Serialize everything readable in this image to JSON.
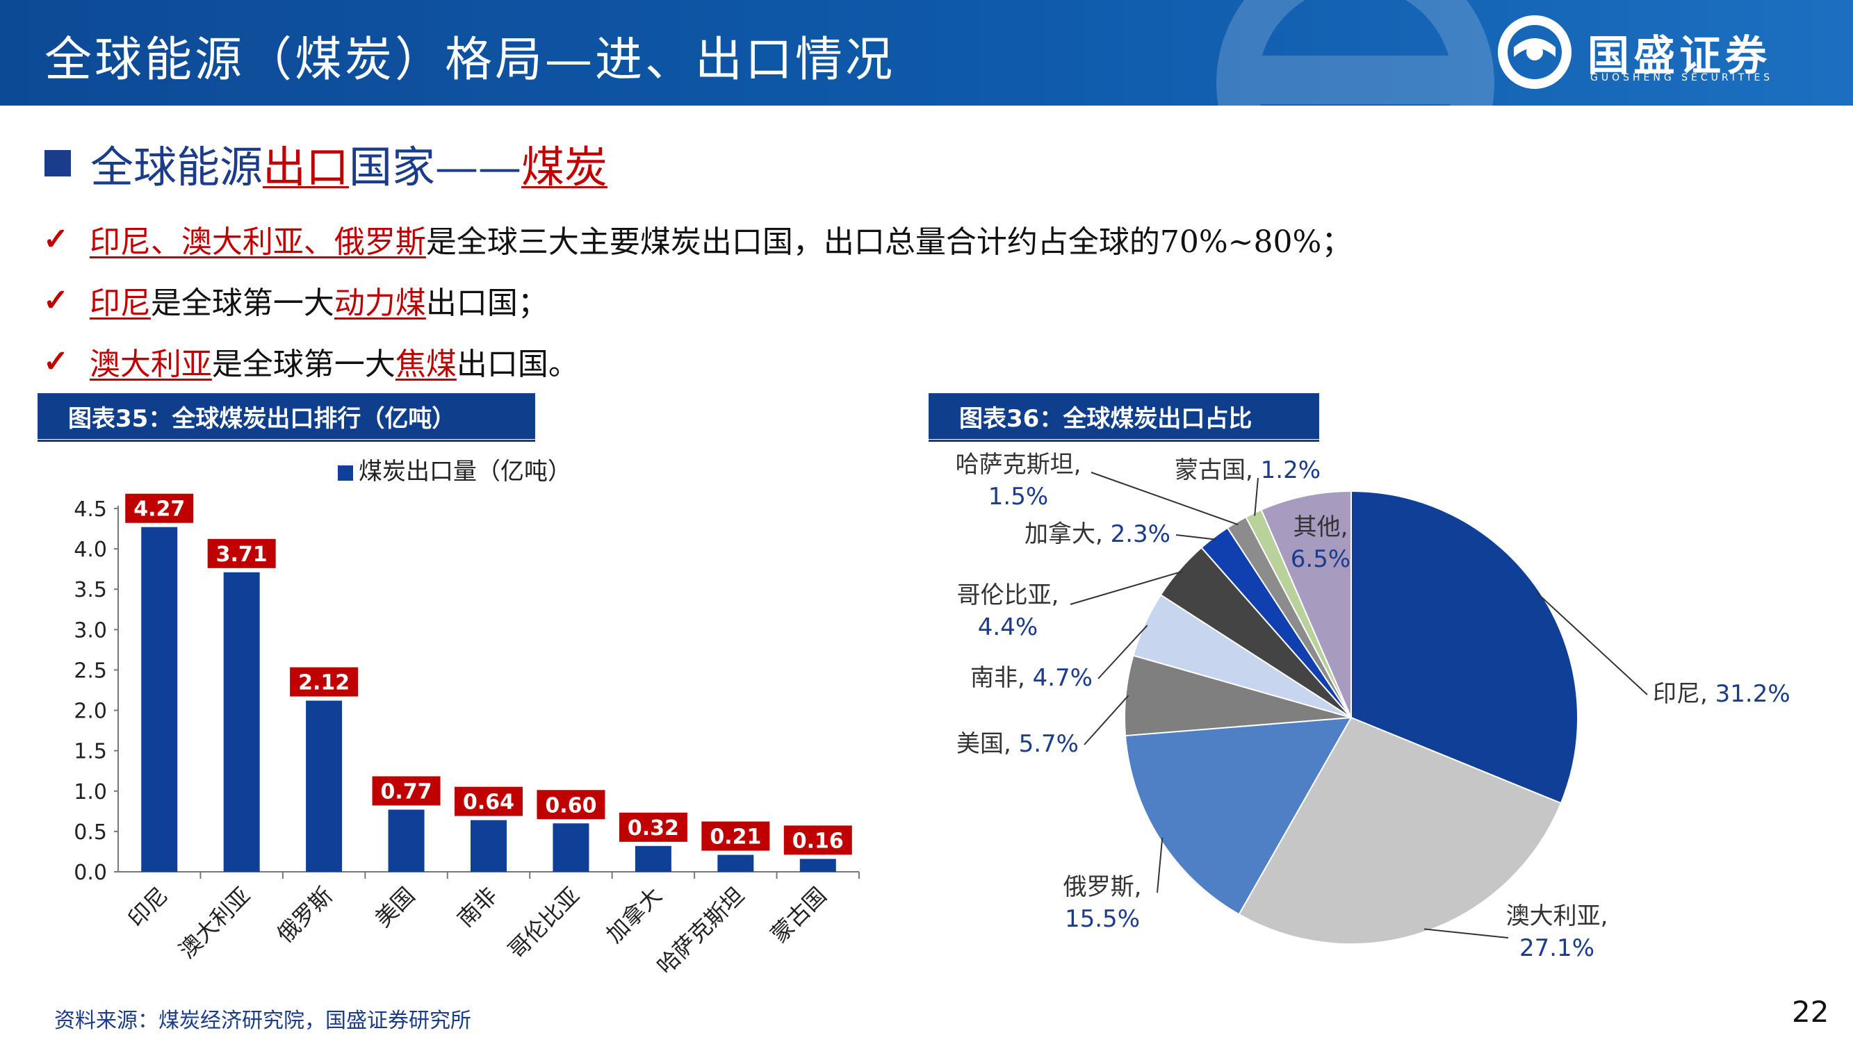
{
  "header": {
    "title": "全球能源（煤炭）格局—进、出口情况",
    "logo_name": "国盛证券",
    "logo_sub": "GUOSHENG SECURITIES"
  },
  "section": {
    "prefix": "全球能源",
    "hl1": "出口",
    "mid": "国家——",
    "hl2": "煤炭"
  },
  "bullets": [
    {
      "check": "✓",
      "hl": "印尼、澳大利亚、俄罗斯",
      "text": "是全球三大主要煤炭出口国，出口总量合计约占全球的70%~80%；"
    },
    {
      "check": "✓",
      "hl": "印尼",
      "text": "是全球第一大",
      "hl2": "动力煤",
      "text2": "出口国；"
    },
    {
      "check": "✓",
      "hl": "澳大利亚",
      "text": "是全球第一大",
      "hl2": "焦煤",
      "text2": "出口国。"
    }
  ],
  "fig35": {
    "label": "图表35：全球煤炭出口排行（亿吨）"
  },
  "fig36": {
    "label": "图表36：全球煤炭出口占比"
  },
  "chart_data": [
    {
      "type": "bar",
      "categories": [
        "印尼",
        "澳大利亚",
        "俄罗斯",
        "美国",
        "南非",
        "哥伦比亚",
        "加拿大",
        "哈萨克斯坦",
        "蒙古国"
      ],
      "series": [
        {
          "name": "煤炭出口量（亿吨）",
          "values": [
            4.27,
            3.71,
            2.12,
            0.77,
            0.64,
            0.6,
            0.32,
            0.21,
            0.16
          ]
        }
      ],
      "data_labels": [
        "4.27",
        "3.71",
        "2.12",
        "0.77",
        "0.64",
        "0.60",
        "0.32",
        "0.21",
        "0.16"
      ],
      "y_ticks": [
        "0.0",
        "0.5",
        "1.0",
        "1.5",
        "2.0",
        "2.5",
        "3.0",
        "3.5",
        "4.0",
        "4.5"
      ],
      "ylim": [
        0,
        4.5
      ],
      "bar_color": "#0f3f96",
      "label_color": "#c00000",
      "legend_position": "top-center"
    },
    {
      "type": "pie",
      "slices": [
        {
          "name": "印尼",
          "value": 31.2,
          "label": "31.2%",
          "color": "#0f3f96"
        },
        {
          "name": "澳大利亚",
          "value": 27.1,
          "label": "27.1%",
          "color": "#c6c6c6"
        },
        {
          "name": "俄罗斯",
          "value": 15.5,
          "label": "15.5%",
          "color": "#4f7fc4"
        },
        {
          "name": "美国",
          "value": 5.7,
          "label": "5.7%",
          "color": "#7f7f7f"
        },
        {
          "name": "南非",
          "value": 4.7,
          "label": "4.7%",
          "color": "#c7d6ee"
        },
        {
          "name": "哥伦比亚",
          "value": 4.4,
          "label": "4.4%",
          "color": "#444444"
        },
        {
          "name": "加拿大",
          "value": 2.3,
          "label": "2.3%",
          "color": "#1040b0"
        },
        {
          "name": "哈萨克斯坦",
          "value": 1.5,
          "label": "1.5%",
          "color": "#8c8c8c"
        },
        {
          "name": "蒙古国",
          "value": 1.2,
          "label": "1.2%",
          "color": "#b9d29c"
        },
        {
          "name": "其他",
          "value": 6.5,
          "label": "6.5%",
          "color": "#a89bc0"
        }
      ]
    }
  ],
  "source": "资料来源：煤炭经济研究院，国盛证券研究所",
  "page_number": "22"
}
